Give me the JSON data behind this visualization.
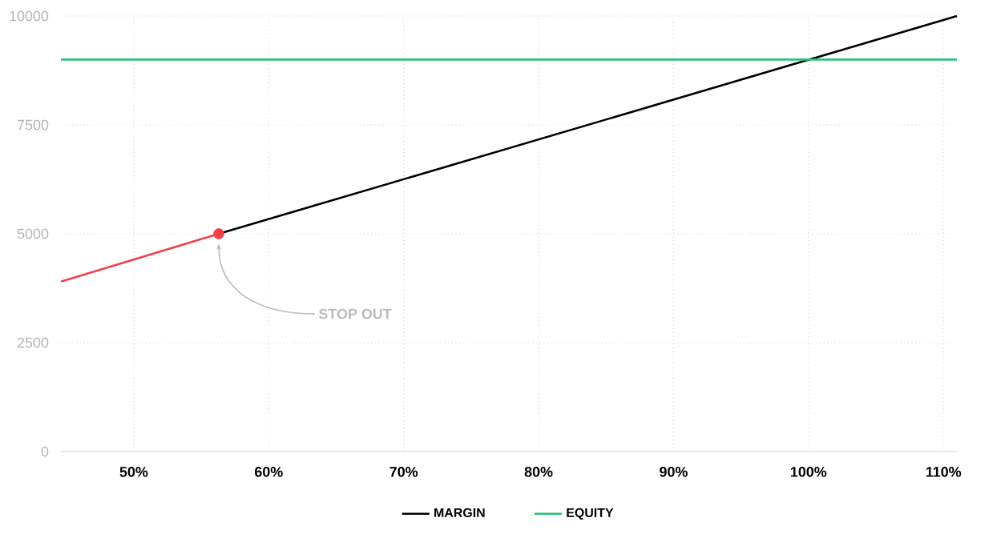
{
  "chart_data": {
    "type": "line",
    "xlim": [
      44.6,
      111
    ],
    "ylim": [
      0,
      10000
    ],
    "xticks": [
      {
        "value": 50,
        "label": "50%"
      },
      {
        "value": 60,
        "label": "60%"
      },
      {
        "value": 70,
        "label": "70%"
      },
      {
        "value": 80,
        "label": "80%"
      },
      {
        "value": 90,
        "label": "90%"
      },
      {
        "value": 100,
        "label": "100%"
      },
      {
        "value": 110,
        "label": "110%"
      }
    ],
    "yticks": [
      0,
      2500,
      5000,
      7500,
      10000
    ],
    "grid": true,
    "legend": "bottom",
    "line_style": "solid",
    "series": [
      {
        "color": "#f0404a",
        "x": [
          44.6,
          56.3
        ],
        "values": [
          3900,
          5000
        ]
      },
      {
        "name": "MARGIN",
        "color": "#000000",
        "x": [
          56.3,
          111
        ],
        "values": [
          5000,
          10000
        ]
      },
      {
        "name": "EQUITY",
        "color": "#22c37a",
        "x": [
          44.6,
          111
        ],
        "values": [
          9000,
          9000
        ]
      },
      {
        "type": "scatter",
        "marker": "circle",
        "color": "#f0404a",
        "x": [
          56.3
        ],
        "values": [
          5000
        ]
      }
    ],
    "annotations": [
      {
        "text": "STOP OUT",
        "x": 56.3,
        "y": 5000
      }
    ]
  }
}
